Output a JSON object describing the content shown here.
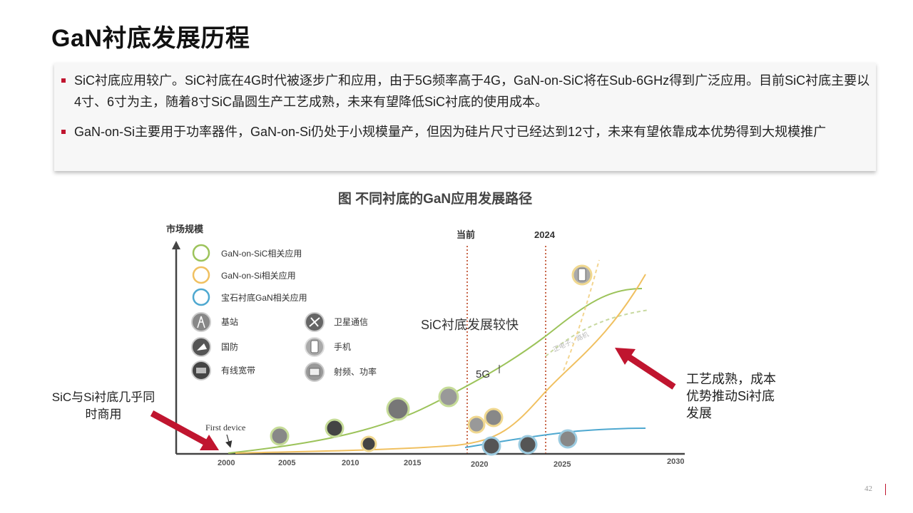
{
  "title": "GaN衬底发展历程",
  "bullets": [
    "SiC衬底应用较广。SiC衬底在4G时代被逐步广和应用，由于5G频率高于4G，GaN-on-SiC将在Sub-6GHz得到广泛应用。目前SiC衬底主要以4寸、6寸为主，随着8寸SiC晶圆生产工艺成熟，未来有望降低SiC衬底的使用成本。",
    "GaN-on-Si主要用于功率器件，GaN-on-Si仍处于小规模量产，但因为硅片尺寸已经达到12寸，未来有望依靠成本优势得到大规模推广"
  ],
  "figure_title": "图  不同衬底的GaN应用发展路径",
  "diagram": {
    "y_axis_label": "市场规模",
    "x_ticks": [
      "2000",
      "2005",
      "2010",
      "2015",
      "2020",
      "2025",
      "2030"
    ],
    "markers": {
      "now": "当前",
      "year_2024": "2024"
    },
    "legend_series": [
      {
        "label": "GaN-on-SiC相关应用",
        "color": "#9cc35a"
      },
      {
        "label": "GaN-on-Si相关应用",
        "color": "#f0c060"
      },
      {
        "label": "宝石衬底GaN相关应用",
        "color": "#4ea8d0"
      }
    ],
    "legend_apps": {
      "base_station": "基站",
      "defense": "国防",
      "cable": "有线宽带",
      "satellite": "卫星通信",
      "phone": "手机",
      "rf_power": "射频、功率"
    },
    "first_device": "First device",
    "sic_fast": "SiC衬底发展较快",
    "label_5g": "5G",
    "faint_label": "正电子、路机"
  },
  "left_note": "SiC与Si衬底几乎同时商用",
  "right_note": "工艺成熟，成本优势推动Si衬底发展",
  "page_number": "42",
  "colors": {
    "accent": "#c0152f",
    "sic": "#9cc35a",
    "si": "#f0c060",
    "sapphire": "#4ea8d0",
    "guide": "#c8674a"
  }
}
